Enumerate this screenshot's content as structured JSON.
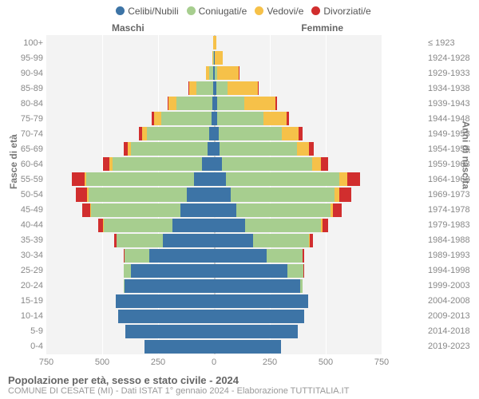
{
  "legend": {
    "items": [
      {
        "label": "Celibi/Nubili",
        "color": "#3d74a6"
      },
      {
        "label": "Coniugati/e",
        "color": "#a7ce8f"
      },
      {
        "label": "Vedovi/e",
        "color": "#f6c149"
      },
      {
        "label": "Divorziati/e",
        "color": "#d12e2e"
      }
    ]
  },
  "gender_labels": {
    "male": "Maschi",
    "female": "Femmine"
  },
  "axis": {
    "left_title": "Fasce di età",
    "right_title": "Anni di nascita",
    "xmax": 750,
    "xticks": [
      750,
      500,
      250,
      0,
      250,
      500,
      750
    ]
  },
  "colors": {
    "plot_bg": "#f3f3f3",
    "grid": "#ffffff",
    "center_line": "#cccccc"
  },
  "footer": {
    "title": "Popolazione per età, sesso e stato civile - 2024",
    "subtitle": "COMUNE DI CESATE (MI) - Dati ISTAT 1° gennaio 2024 - Elaborazione TUTTITALIA.IT"
  },
  "rows": [
    {
      "age": "100+",
      "birth": "≤ 1923",
      "m": {
        "cel": 0,
        "con": 0,
        "ved": 2,
        "div": 0
      },
      "f": {
        "cel": 0,
        "con": 0,
        "ved": 10,
        "div": 0
      }
    },
    {
      "age": "95-99",
      "birth": "1924-1928",
      "m": {
        "cel": 0,
        "con": 3,
        "ved": 3,
        "div": 0
      },
      "f": {
        "cel": 3,
        "con": 2,
        "ved": 35,
        "div": 0
      }
    },
    {
      "age": "90-94",
      "birth": "1929-1933",
      "m": {
        "cel": 2,
        "con": 20,
        "ved": 15,
        "div": 0
      },
      "f": {
        "cel": 5,
        "con": 10,
        "ved": 95,
        "div": 2
      }
    },
    {
      "age": "85-89",
      "birth": "1934-1938",
      "m": {
        "cel": 5,
        "con": 75,
        "ved": 30,
        "div": 3
      },
      "f": {
        "cel": 10,
        "con": 50,
        "ved": 135,
        "div": 5
      }
    },
    {
      "age": "80-84",
      "birth": "1939-1943",
      "m": {
        "cel": 8,
        "con": 160,
        "ved": 35,
        "div": 5
      },
      "f": {
        "cel": 15,
        "con": 120,
        "ved": 140,
        "div": 8
      }
    },
    {
      "age": "75-79",
      "birth": "1944-1948",
      "m": {
        "cel": 12,
        "con": 225,
        "ved": 30,
        "div": 10
      },
      "f": {
        "cel": 15,
        "con": 205,
        "ved": 105,
        "div": 10
      }
    },
    {
      "age": "70-74",
      "birth": "1949-1953",
      "m": {
        "cel": 20,
        "con": 280,
        "ved": 22,
        "div": 15
      },
      "f": {
        "cel": 20,
        "con": 285,
        "ved": 75,
        "div": 15
      }
    },
    {
      "age": "65-69",
      "birth": "1954-1958",
      "m": {
        "cel": 30,
        "con": 340,
        "ved": 15,
        "div": 20
      },
      "f": {
        "cel": 25,
        "con": 345,
        "ved": 55,
        "div": 20
      }
    },
    {
      "age": "60-64",
      "birth": "1959-1963",
      "m": {
        "cel": 55,
        "con": 400,
        "ved": 12,
        "div": 30
      },
      "f": {
        "cel": 35,
        "con": 405,
        "ved": 40,
        "div": 30
      }
    },
    {
      "age": "55-59",
      "birth": "1964-1968",
      "m": {
        "cel": 90,
        "con": 480,
        "ved": 10,
        "div": 55
      },
      "f": {
        "cel": 55,
        "con": 505,
        "ved": 35,
        "div": 60
      }
    },
    {
      "age": "50-54",
      "birth": "1969-1973",
      "m": {
        "cel": 120,
        "con": 440,
        "ved": 8,
        "div": 50
      },
      "f": {
        "cel": 75,
        "con": 465,
        "ved": 20,
        "div": 55
      }
    },
    {
      "age": "45-49",
      "birth": "1974-1978",
      "m": {
        "cel": 150,
        "con": 400,
        "ved": 3,
        "div": 35
      },
      "f": {
        "cel": 100,
        "con": 420,
        "ved": 12,
        "div": 40
      }
    },
    {
      "age": "40-44",
      "birth": "1979-1983",
      "m": {
        "cel": 185,
        "con": 310,
        "ved": 2,
        "div": 20
      },
      "f": {
        "cel": 140,
        "con": 340,
        "ved": 5,
        "div": 25
      }
    },
    {
      "age": "35-39",
      "birth": "1984-1988",
      "m": {
        "cel": 230,
        "con": 205,
        "ved": 0,
        "div": 10
      },
      "f": {
        "cel": 175,
        "con": 250,
        "ved": 3,
        "div": 15
      }
    },
    {
      "age": "30-34",
      "birth": "1989-1993",
      "m": {
        "cel": 290,
        "con": 110,
        "ved": 0,
        "div": 5
      },
      "f": {
        "cel": 235,
        "con": 160,
        "ved": 0,
        "div": 8
      }
    },
    {
      "age": "25-29",
      "birth": "1994-1998",
      "m": {
        "cel": 370,
        "con": 35,
        "ved": 0,
        "div": 0
      },
      "f": {
        "cel": 330,
        "con": 70,
        "ved": 0,
        "div": 2
      }
    },
    {
      "age": "20-24",
      "birth": "1999-2003",
      "m": {
        "cel": 400,
        "con": 5,
        "ved": 0,
        "div": 0
      },
      "f": {
        "cel": 385,
        "con": 12,
        "ved": 0,
        "div": 0
      }
    },
    {
      "age": "15-19",
      "birth": "2004-2008",
      "m": {
        "cel": 440,
        "con": 0,
        "ved": 0,
        "div": 0
      },
      "f": {
        "cel": 420,
        "con": 0,
        "ved": 0,
        "div": 0
      }
    },
    {
      "age": "10-14",
      "birth": "2009-2013",
      "m": {
        "cel": 430,
        "con": 0,
        "ved": 0,
        "div": 0
      },
      "f": {
        "cel": 405,
        "con": 0,
        "ved": 0,
        "div": 0
      }
    },
    {
      "age": "5-9",
      "birth": "2014-2018",
      "m": {
        "cel": 395,
        "con": 0,
        "ved": 0,
        "div": 0
      },
      "f": {
        "cel": 375,
        "con": 0,
        "ved": 0,
        "div": 0
      }
    },
    {
      "age": "0-4",
      "birth": "2019-2023",
      "m": {
        "cel": 310,
        "con": 0,
        "ved": 0,
        "div": 0
      },
      "f": {
        "cel": 300,
        "con": 0,
        "ved": 0,
        "div": 0
      }
    }
  ]
}
